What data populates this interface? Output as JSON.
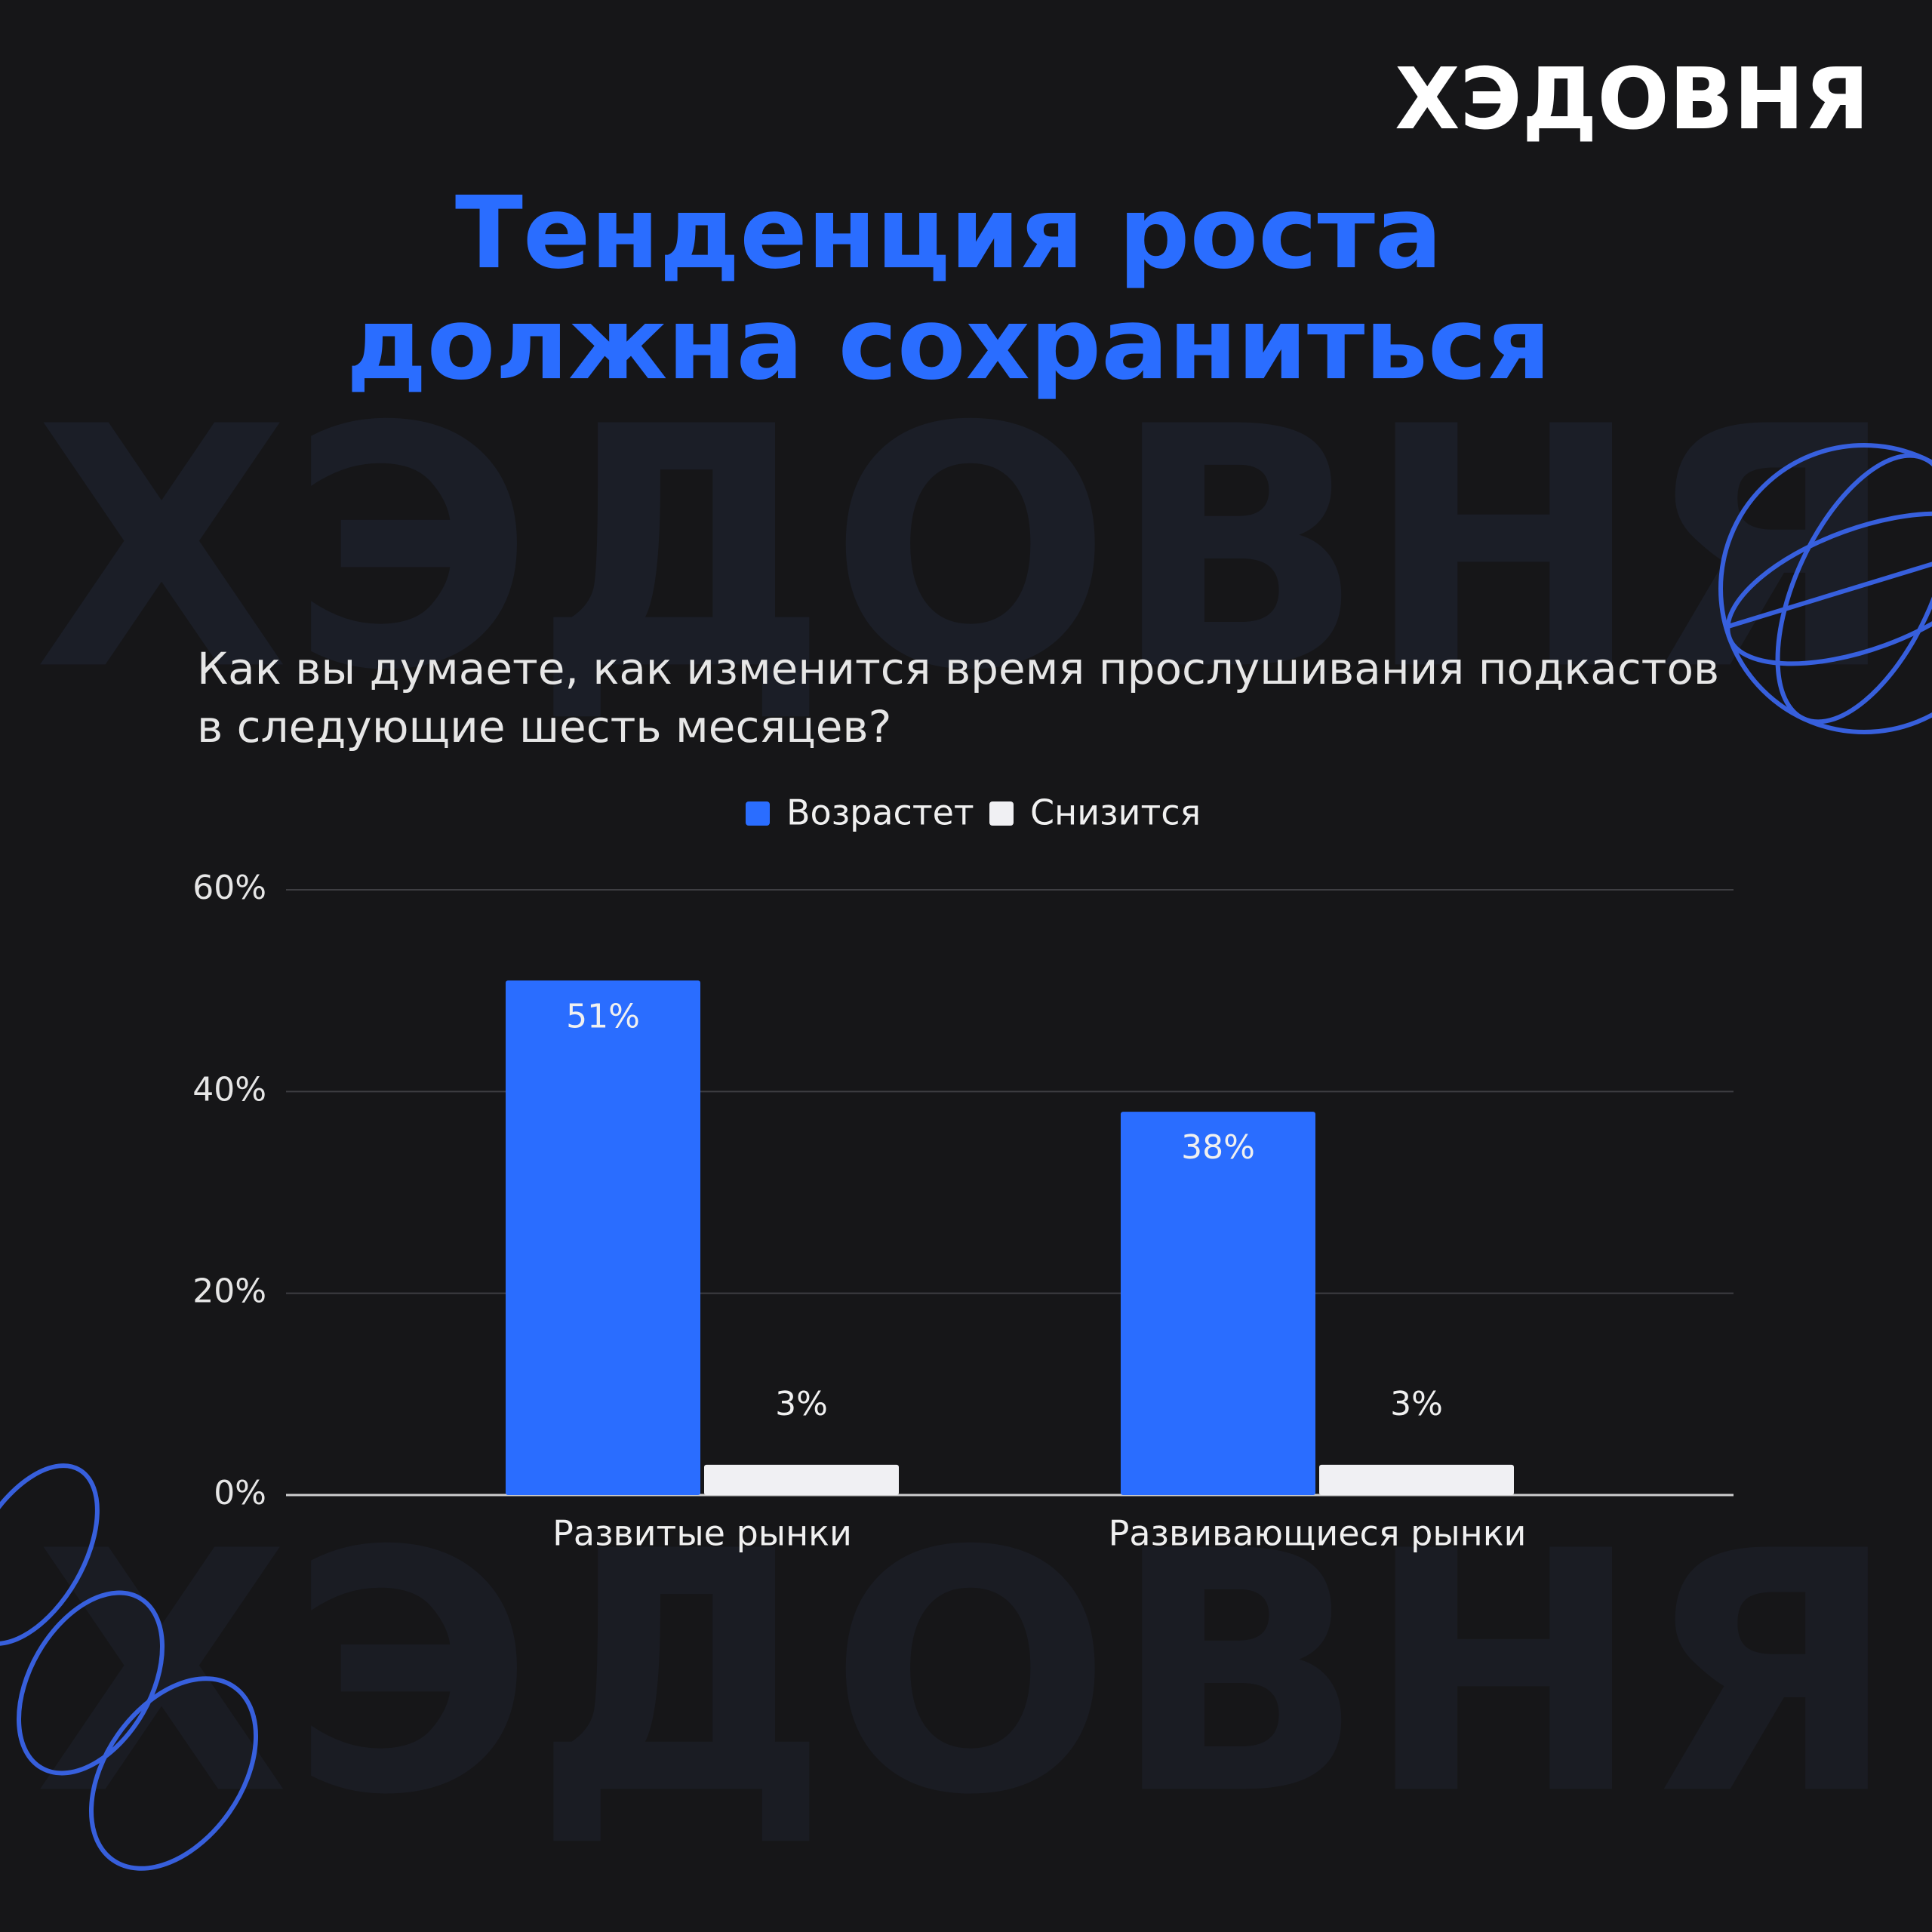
{
  "brand": "ХЭДОВНЯ",
  "chart_data": {
    "type": "bar",
    "title": [
      "Тенденция роста",
      "должна сохраниться"
    ],
    "subtitle": [
      "Как вы думаете, как изменится время прослушивания подкастов",
      "в следующие шесть месяцев?"
    ],
    "categories": [
      "Развитые рынки",
      "Развивающиеся рынки"
    ],
    "series": [
      {
        "name": "Возрастет",
        "color": "#2a6dff",
        "values": [
          51,
          38
        ],
        "value_labels": [
          "51%",
          "38%"
        ]
      },
      {
        "name": "Снизится",
        "color": "#f0f0f3",
        "values": [
          3,
          3
        ],
        "value_labels": [
          "3%",
          "3%"
        ]
      }
    ],
    "ylim": [
      0,
      60
    ],
    "yticks": [
      {
        "value": 0,
        "label": "0%"
      },
      {
        "value": 20,
        "label": "20%"
      },
      {
        "value": 40,
        "label": "40%"
      },
      {
        "value": 60,
        "label": "60%"
      }
    ],
    "grid": true
  }
}
